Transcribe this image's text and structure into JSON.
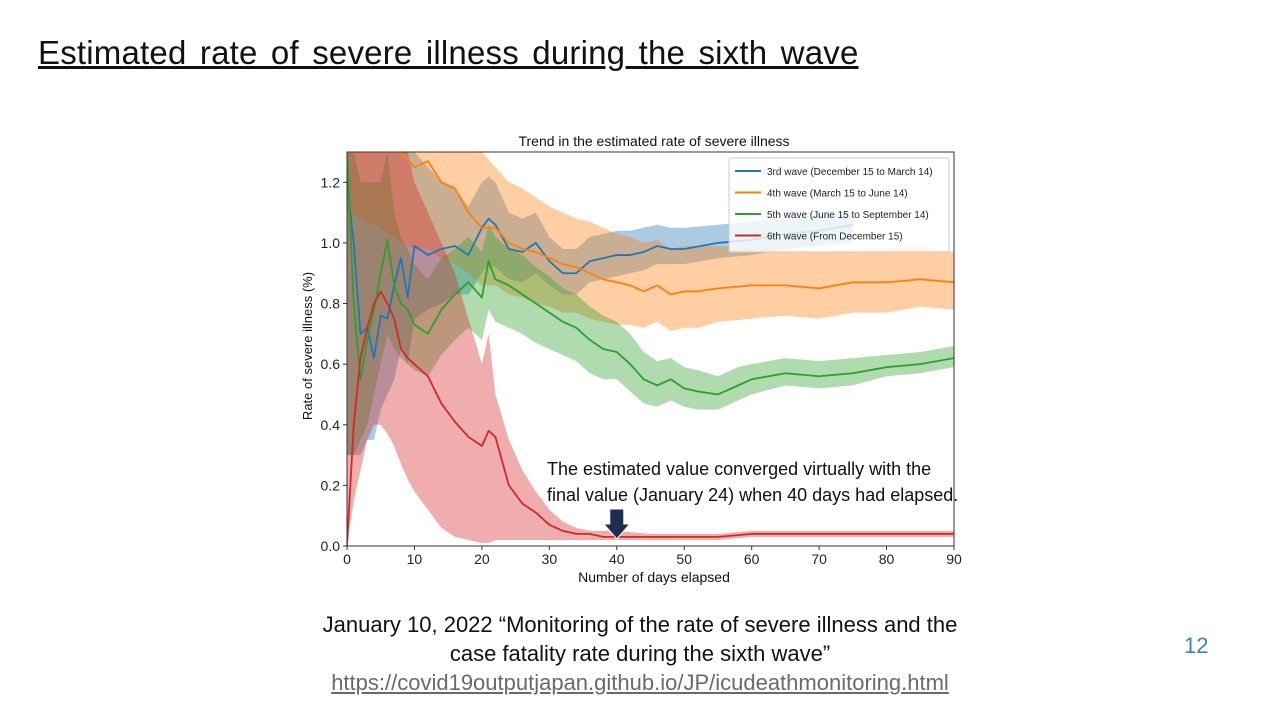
{
  "slide": {
    "title": "Estimated rate of severe illness during the sixth wave",
    "citation_line1": "January 10, 2022 “Monitoring of the rate of severe illness and the",
    "citation_line2": "case fatality rate during the sixth wave”",
    "citation_url": "https://covid19outputjapan.github.io/JP/icudeathmonitoring.html",
    "page_number": "12"
  },
  "chart_data": {
    "type": "line",
    "title": "Trend  in the estimated  rate of severe  illness",
    "xlabel": "Number of days elapsed",
    "ylabel": "Rate of severe illness (%)",
    "xlim": [
      0,
      90
    ],
    "ylim": [
      0,
      1.3
    ],
    "xticks": [
      0,
      10,
      20,
      30,
      40,
      50,
      60,
      70,
      80,
      90
    ],
    "yticks": [
      "0.0",
      "0.2",
      "0.4",
      "0.6",
      "0.8",
      "1.0",
      "1.2"
    ],
    "legend_position": "top-right",
    "annotation_line1": "The estimated value converged virtually with the",
    "annotation_line2": "final value (January 24) when 40 days had elapsed.",
    "annotation_x": 40,
    "series": [
      {
        "name": "3rd wave (December 15 to March 14)",
        "color": "#1f77b4",
        "x": [
          0,
          1,
          2,
          3,
          4,
          5,
          6,
          7,
          8,
          9,
          10,
          12,
          14,
          16,
          18,
          20,
          21,
          22,
          24,
          26,
          28,
          30,
          32,
          34,
          36,
          38,
          40,
          42,
          44,
          46,
          48,
          50,
          55,
          60,
          65,
          70,
          75
        ],
        "y": [
          1.2,
          1.0,
          0.7,
          0.72,
          0.62,
          0.76,
          0.75,
          0.86,
          0.95,
          0.82,
          0.99,
          0.96,
          0.98,
          0.99,
          0.96,
          1.05,
          1.08,
          1.06,
          0.98,
          0.97,
          1.0,
          0.94,
          0.9,
          0.9,
          0.94,
          0.95,
          0.96,
          0.96,
          0.97,
          0.99,
          0.98,
          0.98,
          1.0,
          1.01,
          1.03,
          1.04,
          1.06
        ],
        "lower": [
          0.3,
          0.3,
          0.3,
          0.35,
          0.35,
          0.45,
          0.5,
          0.55,
          0.65,
          0.6,
          0.75,
          0.78,
          0.8,
          0.83,
          0.83,
          0.9,
          0.93,
          0.92,
          0.88,
          0.87,
          0.9,
          0.86,
          0.83,
          0.83,
          0.87,
          0.88,
          0.89,
          0.9,
          0.91,
          0.93,
          0.93,
          0.93,
          0.95,
          0.96,
          0.98,
          0.99,
          1.0
        ],
        "upper": [
          1.3,
          1.3,
          1.3,
          1.3,
          1.3,
          1.3,
          1.3,
          1.3,
          1.3,
          1.3,
          1.3,
          1.25,
          1.2,
          1.18,
          1.12,
          1.2,
          1.22,
          1.2,
          1.1,
          1.08,
          1.1,
          1.02,
          0.98,
          0.98,
          1.02,
          1.03,
          1.04,
          1.04,
          1.05,
          1.06,
          1.05,
          1.05,
          1.06,
          1.07,
          1.08,
          1.09,
          1.1
        ]
      },
      {
        "name": "4th wave (March 15 to June 14)",
        "color": "#ff7f0e",
        "x": [
          0,
          5,
          8,
          10,
          12,
          14,
          16,
          18,
          20,
          22,
          24,
          26,
          28,
          30,
          32,
          34,
          36,
          38,
          40,
          42,
          44,
          46,
          48,
          50,
          52,
          55,
          60,
          65,
          70,
          75,
          80,
          85,
          90
        ],
        "y": [
          1.3,
          1.3,
          1.3,
          1.25,
          1.27,
          1.2,
          1.18,
          1.1,
          1.05,
          1.05,
          1.0,
          0.98,
          0.97,
          0.95,
          0.93,
          0.92,
          0.9,
          0.88,
          0.87,
          0.86,
          0.84,
          0.86,
          0.83,
          0.84,
          0.84,
          0.85,
          0.86,
          0.86,
          0.85,
          0.87,
          0.87,
          0.88,
          0.87
        ],
        "lower": [
          1.1,
          1.05,
          1.0,
          0.98,
          0.98,
          0.95,
          0.93,
          0.9,
          0.86,
          0.86,
          0.83,
          0.82,
          0.8,
          0.79,
          0.77,
          0.77,
          0.75,
          0.74,
          0.73,
          0.73,
          0.72,
          0.74,
          0.71,
          0.72,
          0.72,
          0.74,
          0.75,
          0.76,
          0.75,
          0.77,
          0.77,
          0.79,
          0.78
        ],
        "upper": [
          1.3,
          1.3,
          1.3,
          1.3,
          1.3,
          1.3,
          1.3,
          1.3,
          1.3,
          1.25,
          1.2,
          1.18,
          1.15,
          1.12,
          1.1,
          1.08,
          1.07,
          1.05,
          1.03,
          1.02,
          1.0,
          1.01,
          0.98,
          0.99,
          0.99,
          0.99,
          0.98,
          0.98,
          0.97,
          0.98,
          0.98,
          0.99,
          0.97
        ]
      },
      {
        "name": "5th wave (June 15 to September 14)",
        "color": "#2ca02c",
        "x": [
          0,
          1,
          2,
          3,
          4,
          5,
          6,
          7,
          8,
          9,
          10,
          12,
          14,
          16,
          18,
          20,
          21,
          22,
          24,
          26,
          28,
          30,
          32,
          34,
          36,
          38,
          40,
          42,
          44,
          46,
          48,
          50,
          52,
          55,
          58,
          60,
          65,
          70,
          75,
          80,
          85,
          90
        ],
        "y": [
          1.3,
          0.8,
          0.55,
          0.68,
          0.78,
          0.9,
          1.01,
          0.86,
          0.8,
          0.78,
          0.73,
          0.7,
          0.78,
          0.83,
          0.87,
          0.82,
          0.94,
          0.88,
          0.86,
          0.83,
          0.8,
          0.77,
          0.74,
          0.72,
          0.68,
          0.65,
          0.64,
          0.6,
          0.55,
          0.53,
          0.55,
          0.52,
          0.51,
          0.5,
          0.53,
          0.55,
          0.57,
          0.56,
          0.57,
          0.59,
          0.6,
          0.62
        ],
        "lower": [
          0.3,
          0.3,
          0.35,
          0.4,
          0.5,
          0.6,
          0.7,
          0.65,
          0.62,
          0.6,
          0.58,
          0.56,
          0.63,
          0.68,
          0.72,
          0.68,
          0.78,
          0.74,
          0.72,
          0.7,
          0.67,
          0.65,
          0.63,
          0.61,
          0.57,
          0.55,
          0.55,
          0.51,
          0.47,
          0.46,
          0.48,
          0.46,
          0.45,
          0.45,
          0.48,
          0.5,
          0.53,
          0.52,
          0.53,
          0.56,
          0.57,
          0.59
        ],
        "upper": [
          1.3,
          1.3,
          1.2,
          1.2,
          1.2,
          1.2,
          1.3,
          1.1,
          1.02,
          0.98,
          0.93,
          0.88,
          0.95,
          0.98,
          1.02,
          0.97,
          1.06,
          1.02,
          0.98,
          0.96,
          0.92,
          0.89,
          0.85,
          0.83,
          0.79,
          0.76,
          0.74,
          0.7,
          0.64,
          0.61,
          0.62,
          0.59,
          0.58,
          0.56,
          0.59,
          0.6,
          0.62,
          0.61,
          0.62,
          0.63,
          0.64,
          0.66
        ]
      },
      {
        "name": "6th wave (From December 15)",
        "color": "#d62728",
        "x": [
          0,
          1,
          2,
          3,
          4,
          5,
          6,
          7,
          8,
          9,
          10,
          12,
          14,
          16,
          18,
          20,
          21,
          22,
          24,
          26,
          28,
          30,
          32,
          34,
          36,
          38,
          40,
          45,
          50,
          55,
          60,
          70,
          80,
          90
        ],
        "y": [
          0.0,
          0.4,
          0.62,
          0.72,
          0.8,
          0.84,
          0.8,
          0.75,
          0.65,
          0.62,
          0.6,
          0.56,
          0.47,
          0.41,
          0.36,
          0.33,
          0.38,
          0.36,
          0.2,
          0.14,
          0.11,
          0.07,
          0.05,
          0.04,
          0.04,
          0.03,
          0.03,
          0.03,
          0.03,
          0.03,
          0.04,
          0.04,
          0.04,
          0.04
        ],
        "lower": [
          0.0,
          0.15,
          0.25,
          0.35,
          0.4,
          0.4,
          0.37,
          0.33,
          0.27,
          0.22,
          0.18,
          0.12,
          0.06,
          0.03,
          0.02,
          0.01,
          0.01,
          0.02,
          0.02,
          0.02,
          0.02,
          0.02,
          0.02,
          0.02,
          0.02,
          0.02,
          0.02,
          0.02,
          0.02,
          0.02,
          0.03,
          0.03,
          0.03,
          0.03
        ],
        "upper": [
          1.3,
          1.3,
          1.3,
          1.3,
          1.3,
          1.3,
          1.3,
          1.3,
          1.3,
          1.3,
          1.2,
          1.1,
          1.0,
          0.9,
          0.75,
          0.6,
          0.7,
          0.5,
          0.35,
          0.25,
          0.18,
          0.12,
          0.08,
          0.06,
          0.05,
          0.05,
          0.05,
          0.04,
          0.04,
          0.04,
          0.05,
          0.05,
          0.05,
          0.05
        ]
      }
    ]
  }
}
